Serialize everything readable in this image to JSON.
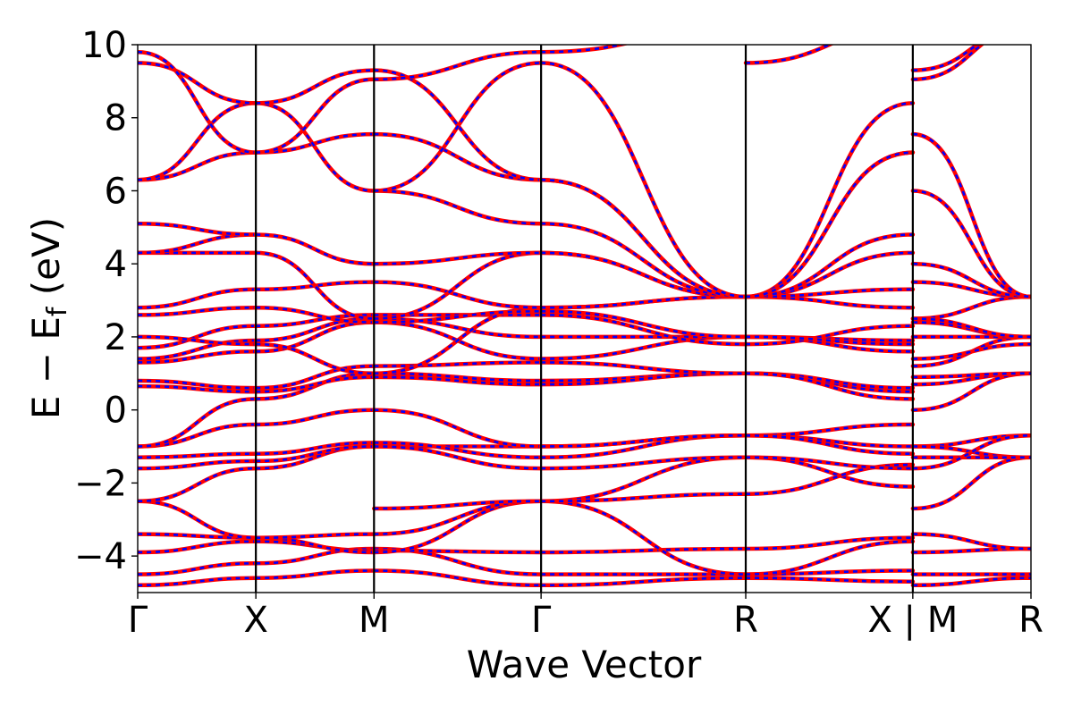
{
  "chart_data": {
    "type": "line",
    "xlabel": "Wave Vector",
    "ylabel": "E − E",
    "ylabel_sub": "f",
    "ylabel_unit": " (eV)",
    "ylim": [
      -5,
      10
    ],
    "y_ticks": [
      {
        "value": -4,
        "label": "−4"
      },
      {
        "value": -2,
        "label": "−2"
      },
      {
        "value": 0,
        "label": "0"
      },
      {
        "value": 2,
        "label": "2"
      },
      {
        "value": 4,
        "label": "4"
      },
      {
        "value": 6,
        "label": "6"
      },
      {
        "value": 8,
        "label": "8"
      },
      {
        "value": 10,
        "label": "10"
      }
    ],
    "kpath": [
      {
        "label": "Γ",
        "pos": 0
      },
      {
        "label": "X",
        "pos": 1
      },
      {
        "label": "M",
        "pos": 2
      },
      {
        "label": "Γ",
        "pos": 3.414
      },
      {
        "label": "R",
        "pos": 5.146
      },
      {
        "label": "X | M",
        "pos": 6.56
      },
      {
        "label": "R",
        "pos": 7.56
      }
    ],
    "grid": false,
    "line_styles": [
      {
        "color": "#ff0000",
        "style": "solid"
      },
      {
        "color": "#0000ff",
        "style": "dashed"
      }
    ],
    "segments": [
      {
        "from": "Γ",
        "to": "X",
        "bands": [
          [
            -4.8,
            -4.6
          ],
          [
            -4.5,
            -4.2
          ],
          [
            -3.9,
            -3.6
          ],
          [
            -3.4,
            -3.5
          ],
          [
            -2.5,
            -3.5
          ],
          [
            -2.5,
            -1.6
          ],
          [
            -1.6,
            -1.4
          ],
          [
            -1.3,
            -1.2
          ],
          [
            -1.0,
            -0.4
          ],
          [
            -1.0,
            0.3
          ],
          [
            0.65,
            0.5
          ],
          [
            0.8,
            0.6
          ],
          [
            1.3,
            1.6
          ],
          [
            1.4,
            1.9
          ],
          [
            1.7,
            2.3
          ],
          [
            2.0,
            1.8
          ],
          [
            2.6,
            2.8
          ],
          [
            2.8,
            3.3
          ],
          [
            4.3,
            4.3
          ],
          [
            4.3,
            4.8
          ],
          [
            5.1,
            4.8
          ],
          [
            6.3,
            7.05
          ],
          [
            6.3,
            8.4
          ],
          [
            9.5,
            8.4
          ],
          [
            9.8,
            7.05
          ]
        ]
      },
      {
        "from": "X",
        "to": "M",
        "bands": [
          [
            -4.6,
            -4.4
          ],
          [
            -4.2,
            -3.8
          ],
          [
            -3.6,
            -3.85
          ],
          [
            -3.5,
            -3.9
          ],
          [
            -3.5,
            -3.4
          ],
          [
            -1.6,
            -1.0
          ],
          [
            -1.4,
            -1.0
          ],
          [
            -1.2,
            -0.9
          ],
          [
            -0.4,
            0.0
          ],
          [
            0.3,
            1.0
          ],
          [
            0.5,
            0.9
          ],
          [
            0.6,
            1.2
          ],
          [
            1.6,
            2.4
          ],
          [
            1.9,
            2.5
          ],
          [
            2.3,
            2.6
          ],
          [
            1.8,
            1.0
          ],
          [
            2.8,
            2.4
          ],
          [
            3.3,
            3.5
          ],
          [
            4.3,
            2.5
          ],
          [
            4.8,
            4.0
          ],
          [
            7.05,
            7.55
          ],
          [
            8.4,
            6.0
          ],
          [
            8.4,
            9.3
          ],
          [
            7.05,
            9.05
          ]
        ]
      },
      {
        "from": "M",
        "to": "Γ",
        "bands": [
          [
            -4.4,
            -4.8
          ],
          [
            -3.8,
            -4.5
          ],
          [
            -3.85,
            -3.9
          ],
          [
            -3.9,
            -2.5
          ],
          [
            -3.4,
            -2.5
          ],
          [
            -2.7,
            -2.5
          ],
          [
            -1.0,
            -1.0
          ],
          [
            -1.0,
            -1.6
          ],
          [
            -0.9,
            -1.3
          ],
          [
            0.0,
            -1.0
          ],
          [
            1.0,
            0.8
          ],
          [
            0.9,
            0.7
          ],
          [
            1.2,
            1.3
          ],
          [
            2.4,
            1.4
          ],
          [
            2.5,
            2.0
          ],
          [
            2.6,
            2.6
          ],
          [
            1.0,
            2.8
          ],
          [
            2.4,
            2.7
          ],
          [
            3.5,
            2.8
          ],
          [
            2.5,
            4.3
          ],
          [
            4.0,
            4.3
          ],
          [
            6.0,
            5.1
          ],
          [
            7.55,
            6.3
          ],
          [
            9.3,
            6.3
          ],
          [
            9.05,
            9.8
          ],
          [
            6.0,
            9.5
          ]
        ]
      },
      {
        "from": "Γ",
        "to": "R",
        "bands": [
          [
            -4.8,
            -4.6
          ],
          [
            -4.5,
            -4.5
          ],
          [
            -3.9,
            -3.8
          ],
          [
            -2.5,
            -4.5
          ],
          [
            -2.5,
            -1.3
          ],
          [
            -2.5,
            -2.3
          ],
          [
            -1.0,
            -0.7
          ],
          [
            -1.6,
            -1.3
          ],
          [
            -1.3,
            -0.7
          ],
          [
            -1.0,
            -0.7
          ],
          [
            0.8,
            1.0
          ],
          [
            0.7,
            1.0
          ],
          [
            1.3,
            1.0
          ],
          [
            1.4,
            2.0
          ],
          [
            2.0,
            2.0
          ],
          [
            2.6,
            1.8
          ],
          [
            2.8,
            3.1
          ],
          [
            2.7,
            2.0
          ],
          [
            2.8,
            3.1
          ],
          [
            4.3,
            3.1
          ],
          [
            4.3,
            3.1
          ],
          [
            5.1,
            3.1
          ],
          [
            6.3,
            3.1
          ],
          [
            6.3,
            3.1
          ],
          [
            9.5,
            3.1
          ],
          [
            9.8,
            10.5
          ]
        ]
      },
      {
        "from": "R",
        "to": "X",
        "bands": [
          [
            -4.6,
            -4.7
          ],
          [
            -4.5,
            -4.4
          ],
          [
            -3.8,
            -3.5
          ],
          [
            -4.5,
            -3.6
          ],
          [
            -1.3,
            -2.1
          ],
          [
            -2.3,
            -1.5
          ],
          [
            -0.7,
            -1.0
          ],
          [
            -1.3,
            -1.6
          ],
          [
            -0.7,
            -0.4
          ],
          [
            -0.7,
            -1.2
          ],
          [
            1.0,
            0.5
          ],
          [
            1.0,
            0.6
          ],
          [
            1.0,
            0.3
          ],
          [
            2.0,
            1.6
          ],
          [
            2.0,
            1.9
          ],
          [
            1.8,
            2.3
          ],
          [
            3.1,
            4.3
          ],
          [
            2.0,
            1.8
          ],
          [
            3.1,
            2.8
          ],
          [
            3.1,
            3.3
          ],
          [
            3.1,
            4.8
          ],
          [
            3.1,
            7.05
          ],
          [
            3.1,
            8.4
          ],
          [
            3.1,
            7.05
          ],
          [
            9.5,
            10.5
          ]
        ]
      },
      {
        "from": "M",
        "to": "R",
        "bands": [
          [
            -4.8,
            -4.6
          ],
          [
            -4.5,
            -4.5
          ],
          [
            -3.9,
            -3.8
          ],
          [
            -3.4,
            -3.8
          ],
          [
            -2.7,
            -1.3
          ],
          [
            -1.0,
            -0.7
          ],
          [
            -1.0,
            -1.3
          ],
          [
            -1.3,
            -1.3
          ],
          [
            -1.6,
            -0.7
          ],
          [
            0.0,
            1.0
          ],
          [
            0.7,
            1.0
          ],
          [
            0.9,
            1.0
          ],
          [
            1.2,
            2.0
          ],
          [
            1.4,
            1.8
          ],
          [
            2.0,
            2.0
          ],
          [
            2.4,
            2.0
          ],
          [
            2.5,
            3.1
          ],
          [
            2.5,
            2.0
          ],
          [
            3.5,
            3.1
          ],
          [
            4.0,
            3.1
          ],
          [
            6.0,
            3.1
          ],
          [
            7.55,
            3.1
          ],
          [
            9.05,
            10.5
          ],
          [
            9.3,
            10.5
          ]
        ]
      }
    ]
  }
}
